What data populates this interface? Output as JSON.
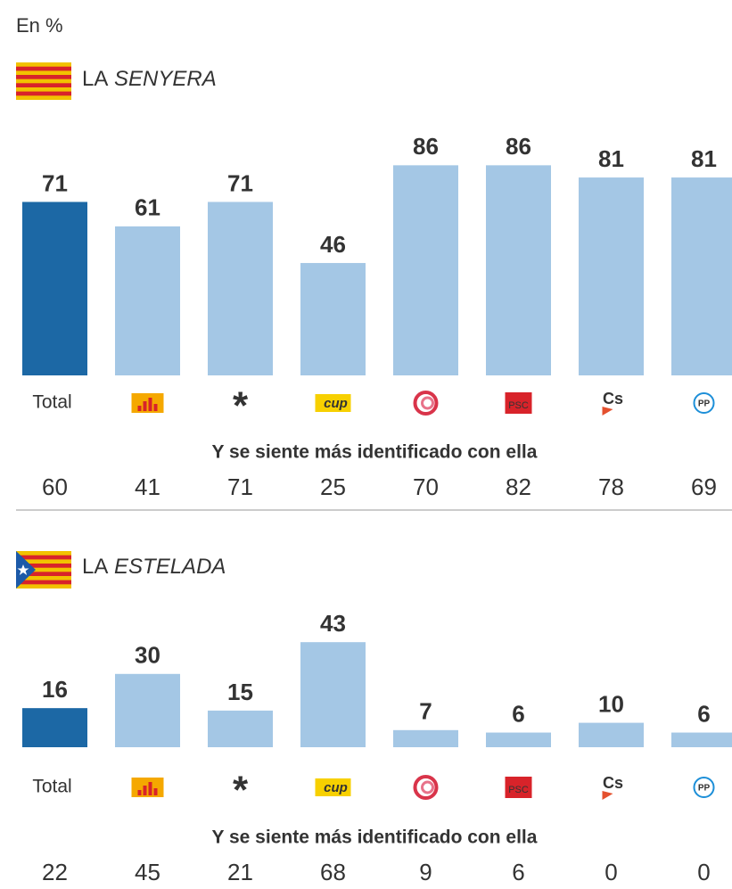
{
  "unit_label": "En %",
  "chart_data": [
    {
      "type": "bar",
      "title": "LA SENYERA",
      "categories": [
        "Total",
        null,
        null,
        "cup",
        null,
        "PSC",
        "Cs",
        "PP"
      ],
      "values": [
        71,
        61,
        71,
        46,
        86,
        86,
        81,
        81
      ],
      "colors": [
        "#1c68a5",
        "#a4c7e5",
        "#a4c7e5",
        "#a4c7e5",
        "#a4c7e5",
        "#a4c7e5",
        "#a4c7e5",
        "#a4c7e5"
      ],
      "secondary_label": "Y se siente más identificado con ella",
      "secondary_values": [
        60,
        41,
        71,
        25,
        70,
        82,
        78,
        69
      ]
    },
    {
      "type": "bar",
      "title": "LA ESTELADA",
      "categories": [
        "Total",
        null,
        null,
        "cup",
        null,
        "PSC",
        "Cs",
        "PP"
      ],
      "values": [
        16,
        30,
        15,
        43,
        7,
        6,
        10,
        6
      ],
      "colors": [
        "#1c68a5",
        "#a4c7e5",
        "#a4c7e5",
        "#a4c7e5",
        "#a4c7e5",
        "#a4c7e5",
        "#a4c7e5",
        "#a4c7e5"
      ],
      "secondary_label": "Y se siente más identificado con ella",
      "secondary_values": [
        22,
        45,
        21,
        68,
        9,
        6,
        0,
        0
      ]
    }
  ]
}
